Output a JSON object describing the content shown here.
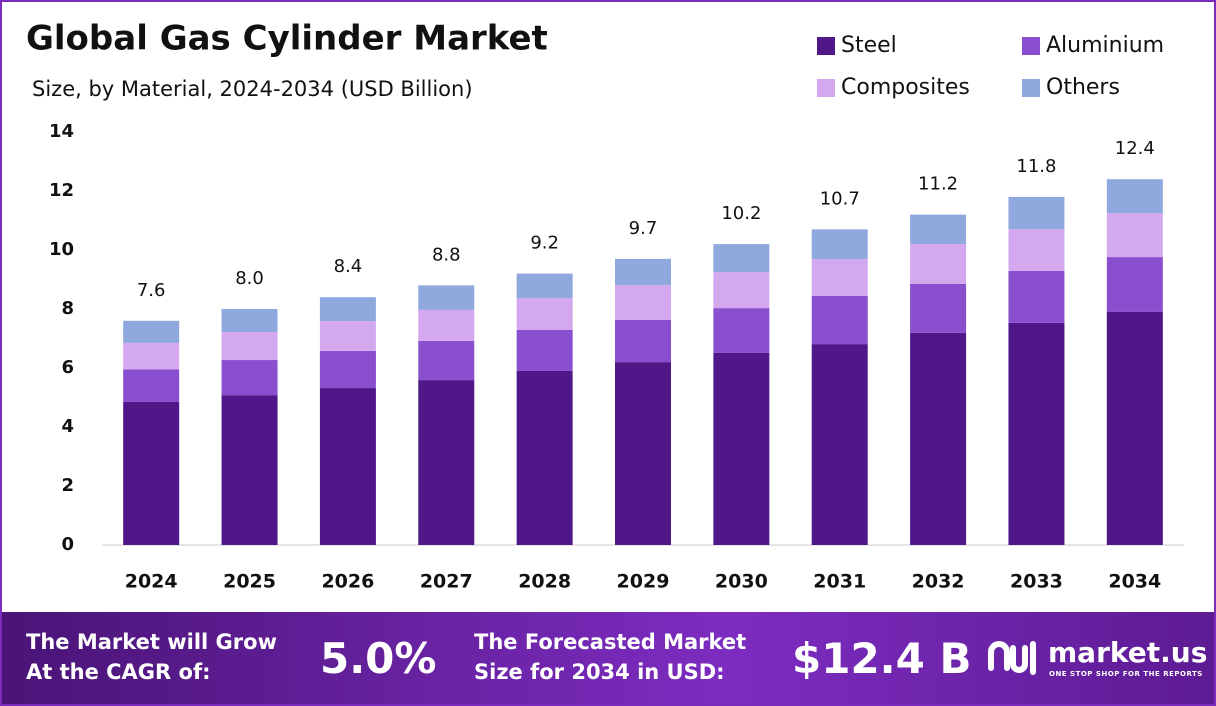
{
  "chart_data": {
    "type": "bar",
    "stacked": true,
    "title": "Global Gas Cylinder Market",
    "subtitle": "Size, by Material, 2024-2034 (USD Billion)",
    "categories": [
      "2024",
      "2025",
      "2026",
      "2027",
      "2028",
      "2029",
      "2030",
      "2031",
      "2032",
      "2033",
      "2034"
    ],
    "series": [
      {
        "name": "Steel",
        "color": "#4f1787",
        "values": [
          4.85,
          5.08,
          5.32,
          5.59,
          5.9,
          6.2,
          6.51,
          6.81,
          7.19,
          7.53,
          7.9
        ]
      },
      {
        "name": "Aluminium",
        "color": "#8a4fcf",
        "values": [
          1.1,
          1.19,
          1.26,
          1.33,
          1.39,
          1.43,
          1.52,
          1.63,
          1.66,
          1.76,
          1.86
        ]
      },
      {
        "name": "Composites",
        "color": "#d3a8ee",
        "values": [
          0.9,
          0.95,
          1.01,
          1.05,
          1.08,
          1.18,
          1.22,
          1.25,
          1.35,
          1.42,
          1.49
        ]
      },
      {
        "name": "Others",
        "color": "#8fa8de",
        "values": [
          0.75,
          0.78,
          0.81,
          0.83,
          0.83,
          0.89,
          0.95,
          1.01,
          1.0,
          1.09,
          1.15
        ]
      }
    ],
    "totals": [
      7.6,
      8.0,
      8.4,
      8.8,
      9.2,
      9.7,
      10.2,
      10.7,
      11.2,
      11.8,
      12.4
    ],
    "totals_labels": [
      "7.6",
      "8.0",
      "8.4",
      "8.8",
      "9.2",
      "9.7",
      "10.2",
      "10.7",
      "11.2",
      "11.8",
      "12.4"
    ],
    "ylim": [
      0,
      14
    ],
    "yticks": [
      0,
      2,
      4,
      6,
      8,
      10,
      12,
      14
    ],
    "grid": false
  },
  "footer": {
    "cagr_label": [
      "The Market will Grow",
      "At the CAGR of:"
    ],
    "cagr_value": "5.0%",
    "forecast_label": [
      "The Forecasted Market",
      "Size for 2034 in USD:"
    ],
    "forecast_value": "$12.4 B",
    "brand": "market.us",
    "tagline": "ONE STOP SHOP FOR THE REPORTS"
  }
}
